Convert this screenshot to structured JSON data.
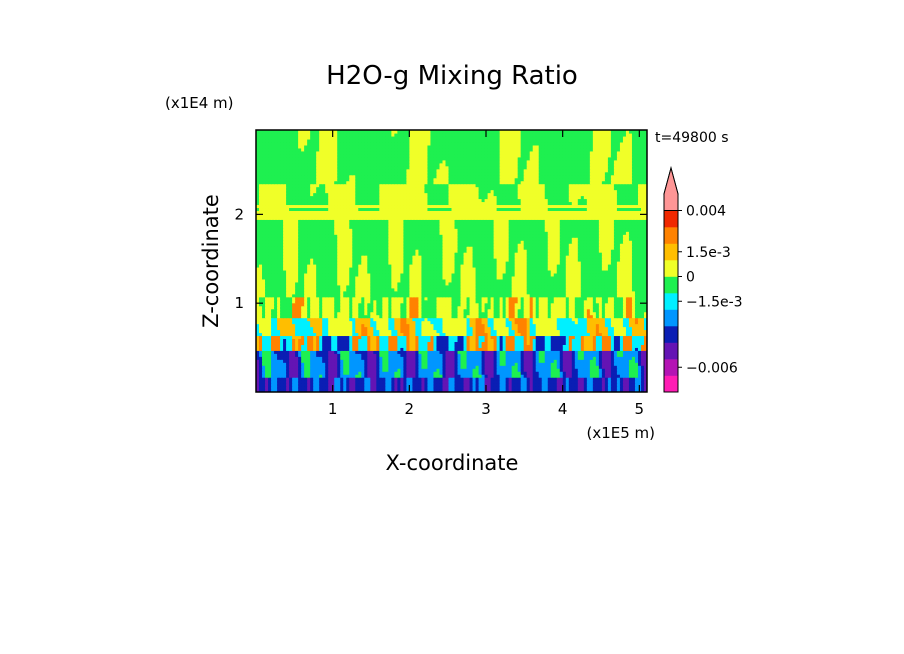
{
  "chart_data": {
    "type": "heatmap",
    "title": "H2O-g Mixing Ratio",
    "xlabel": "X-coordinate",
    "ylabel": "Z-coordinate",
    "x_unit": "(x1E5 m)",
    "y_unit": "(x1E4 m)",
    "time_label": "t=49800 s",
    "xlim": [
      0,
      5.1
    ],
    "ylim": [
      0,
      2.95
    ],
    "x_ticks": [
      1,
      2,
      3,
      4,
      5
    ],
    "y_ticks": [
      1,
      2
    ],
    "colorbar": {
      "levels": [
        {
          "color": "#ff1cb4"
        },
        {
          "color": "#b414b4"
        },
        {
          "color": "#6414b4"
        },
        {
          "color": "#0a1eb4"
        },
        {
          "color": "#0096ff"
        },
        {
          "color": "#00f0ff"
        },
        {
          "color": "#1ef050"
        },
        {
          "color": "#f0ff28"
        },
        {
          "color": "#ffbe00"
        },
        {
          "color": "#ff8200"
        },
        {
          "color": "#f02800"
        },
        {
          "color": "#ff9696"
        }
      ],
      "labels": [
        {
          "text": "0.004",
          "level": 11
        },
        {
          "text": "1.5e-3",
          "level": 8.5
        },
        {
          "text": "0",
          "level": 7
        },
        {
          "text": "−1.5e-3",
          "level": 5.5
        },
        {
          "text": "−0.006",
          "level": 1.5
        }
      ]
    },
    "field_description": "Mixing-ratio anomaly field; green/yellow banded upper layer, cyan layer near z=0.5, orange plumes rising from surface, dark blue/purple negative anomalies near ground."
  }
}
